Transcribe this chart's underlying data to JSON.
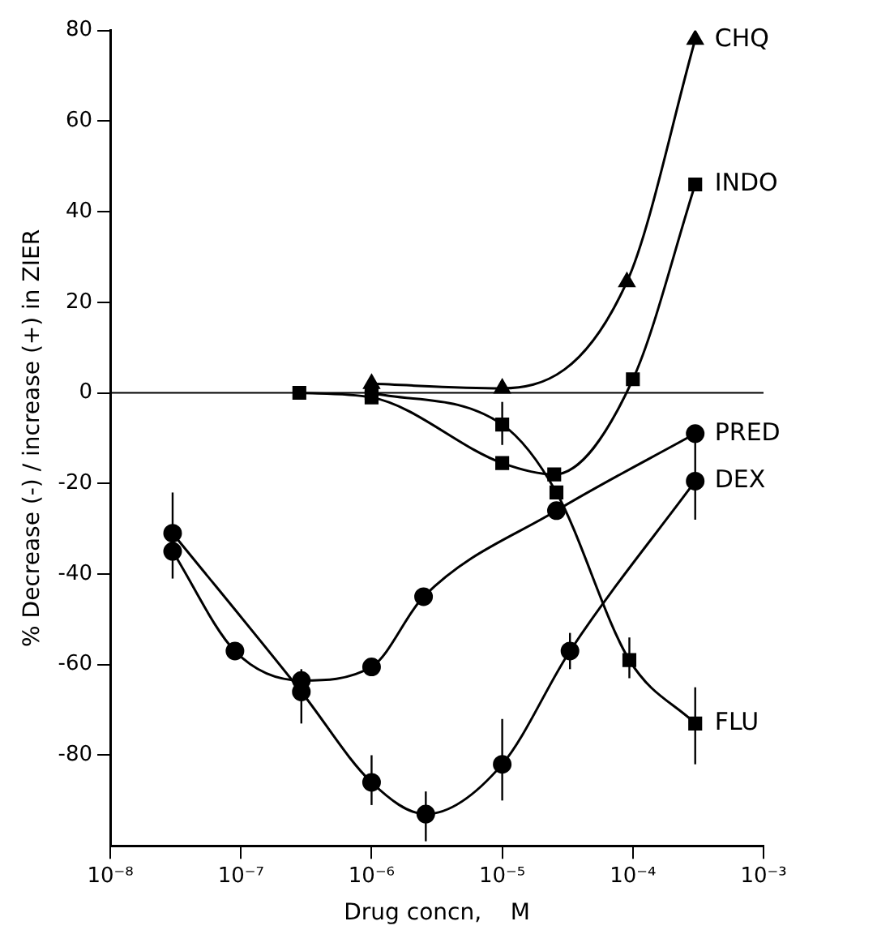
{
  "chart_data": {
    "type": "line",
    "xlabel": "Drug concn,    M",
    "ylabel": "% Decrease (-) / increase (+) in ZIER",
    "log": "x",
    "grid": false,
    "legend": false,
    "line_style": "solid",
    "xlim": [
      1e-08,
      0.001
    ],
    "xticks": [
      {
        "value": 1e-08,
        "label": "10⁻⁸"
      },
      {
        "value": 1e-07,
        "label": "10⁻⁷"
      },
      {
        "value": 1e-06,
        "label": "10⁻⁶"
      },
      {
        "value": 1e-05,
        "label": "10⁻⁵"
      },
      {
        "value": 0.0001,
        "label": "10⁻⁴"
      },
      {
        "value": 0.001,
        "label": "10⁻³"
      }
    ],
    "ylim": [
      -100,
      80
    ],
    "yticks": [
      80,
      60,
      40,
      20,
      0,
      -20,
      -40,
      -60,
      -80
    ],
    "ref_lines": [
      {
        "axis": "y",
        "value": 0,
        "color": "#000000"
      }
    ],
    "series": [
      {
        "name": "CHQ",
        "color": "#000000",
        "marker": "triangle",
        "x": [
          1e-06,
          1e-05,
          9e-05,
          0.0003
        ],
        "values": [
          2,
          1,
          24.5,
          78
        ]
      },
      {
        "name": "INDO",
        "color": "#000000",
        "marker": "square",
        "x": [
          2.8e-07,
          1e-06,
          1e-05,
          2.5e-05,
          0.0001,
          0.0003
        ],
        "values": [
          0,
          -1,
          -15.5,
          -18,
          3,
          46
        ]
      },
      {
        "name": "PRED",
        "color": "#000000",
        "marker": "circle",
        "x": [
          3e-08,
          9e-08,
          2.9e-07,
          1e-06,
          2.5e-06,
          2.6e-05,
          0.0003
        ],
        "values": [
          -35,
          -57,
          -63.5,
          -60.5,
          -45,
          -26,
          -9
        ]
      },
      {
        "name": "DEX",
        "color": "#000000",
        "marker": "circle",
        "x": [
          3e-08,
          2.9e-07,
          1e-06,
          2.6e-06,
          1e-05,
          3.3e-05,
          0.0003
        ],
        "values": [
          -31,
          -66,
          -86,
          -93,
          -82,
          -57,
          -19.5
        ],
        "errors": [
          [
            -41,
            -22
          ],
          [
            -73,
            -61
          ],
          [
            -91,
            -80
          ],
          [
            -99,
            -88
          ],
          [
            -90,
            -72
          ],
          [
            -61,
            -53
          ],
          [
            -28,
            -10
          ]
        ]
      },
      {
        "name": "FLU",
        "color": "#000000",
        "marker": "square",
        "x": [
          1e-06,
          1e-05,
          2.6e-05,
          9.4e-05,
          0.0003
        ],
        "values": [
          0,
          -7,
          -22,
          -59,
          -73
        ],
        "errors": [
          null,
          [
            -11.5,
            -2
          ],
          null,
          [
            -63,
            -54
          ],
          [
            -82,
            -65
          ]
        ]
      }
    ]
  }
}
